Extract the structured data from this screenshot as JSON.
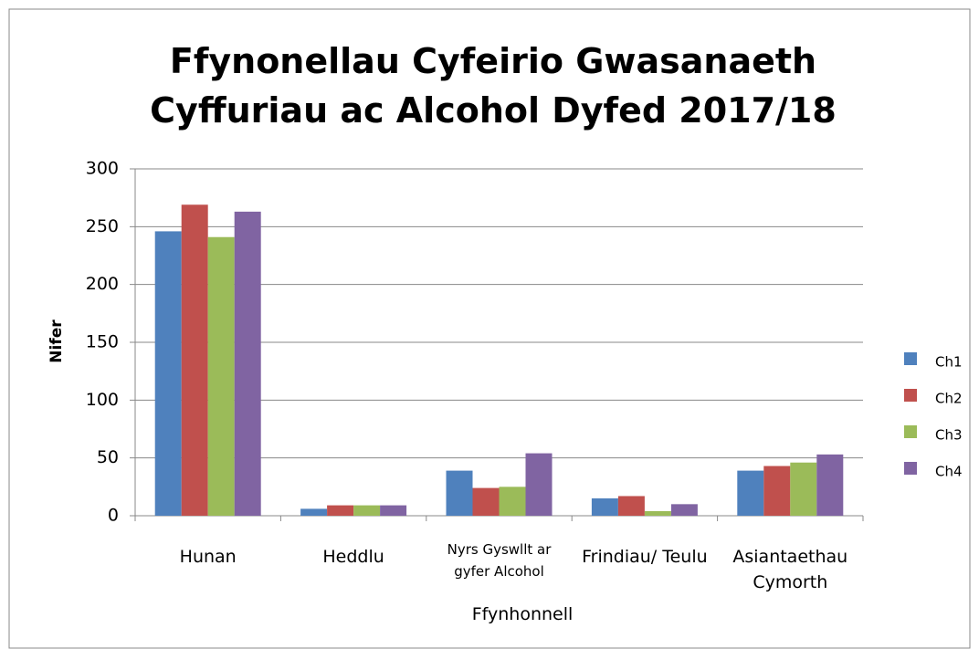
{
  "chart_data": {
    "type": "bar",
    "title": "Ffynonellau Cyfeirio Gwasanaeth Cyffuriau ac Alcohol Dyfed 2017/18",
    "x_label": "Ffynhonnell",
    "y_label": "Nifer",
    "categories": [
      "Hunan",
      "Heddlu",
      "Nyrs Gyswllt ar gyfer Alcohol",
      "Frindiau/ Teulu",
      "Asiantaethau Cymorth"
    ],
    "series": [
      {
        "name": "Ch1",
        "color": "#4f81bd",
        "values": [
          246,
          6,
          39,
          15,
          39
        ]
      },
      {
        "name": "Ch2",
        "color": "#c0504d",
        "values": [
          269,
          9,
          24,
          17,
          43
        ]
      },
      {
        "name": "Ch3",
        "color": "#9bbb59",
        "values": [
          241,
          9,
          25,
          4,
          46
        ]
      },
      {
        "name": "Ch4",
        "color": "#8064a2",
        "values": [
          263,
          9,
          54,
          10,
          53
        ]
      }
    ],
    "ylim": [
      0,
      300
    ],
    "yticks": [
      0,
      50,
      100,
      150,
      200,
      250,
      300
    ],
    "grid": true,
    "legend": "right"
  }
}
